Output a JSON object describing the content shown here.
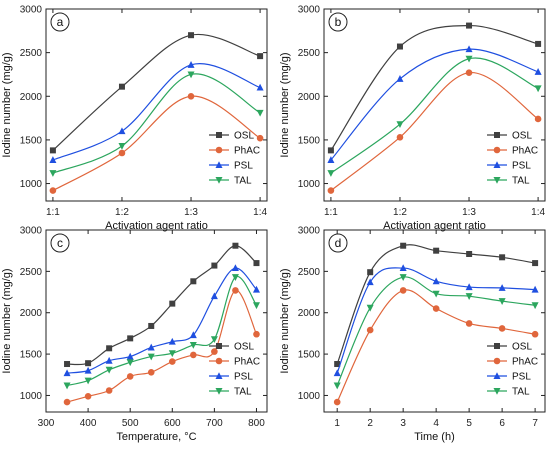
{
  "chart_data": [
    {
      "type": "line",
      "panel_label": "a",
      "xlabel": "Activation agent ratio",
      "ylabel": "Iodine number (mg/g)",
      "x_categorical": true,
      "x": [
        1,
        2,
        3,
        4
      ],
      "x_tick_labels": [
        "1:1",
        "1:2",
        "1:3",
        "1:4"
      ],
      "xlim": [
        0.9,
        4.1
      ],
      "ylim": [
        800,
        3000
      ],
      "y_ticks": [
        1000,
        1500,
        2000,
        2500,
        3000
      ],
      "legend_position": "lower-right",
      "series": [
        {
          "name": "OSL",
          "color": "#404040",
          "marker": "square",
          "values": [
            1380,
            2110,
            2700,
            2460
          ]
        },
        {
          "name": "PhAC",
          "color": "#e0663c",
          "marker": "circle",
          "values": [
            920,
            1350,
            2000,
            1520
          ]
        },
        {
          "name": "PSL",
          "color": "#1f4fe0",
          "marker": "triangle",
          "values": [
            1270,
            1600,
            2360,
            2100
          ]
        },
        {
          "name": "TAL",
          "color": "#2ca65e",
          "marker": "tri-down",
          "values": [
            1120,
            1430,
            2250,
            1810
          ]
        }
      ]
    },
    {
      "type": "line",
      "panel_label": "b",
      "xlabel": "Activation agent ratio",
      "ylabel": "Iodine number (mg/g)",
      "x_categorical": true,
      "x": [
        1,
        2,
        3,
        4
      ],
      "x_tick_labels": [
        "1:1",
        "1:2",
        "1:3",
        "1:4"
      ],
      "xlim": [
        0.9,
        4.1
      ],
      "ylim": [
        800,
        3000
      ],
      "y_ticks": [
        1000,
        1500,
        2000,
        2500,
        3000
      ],
      "legend_position": "lower-right",
      "series": [
        {
          "name": "OSL",
          "color": "#404040",
          "marker": "square",
          "values": [
            1380,
            2570,
            2810,
            2600
          ]
        },
        {
          "name": "PhAC",
          "color": "#e0663c",
          "marker": "circle",
          "values": [
            920,
            1530,
            2270,
            1740
          ]
        },
        {
          "name": "PSL",
          "color": "#1f4fe0",
          "marker": "triangle",
          "values": [
            1270,
            2200,
            2540,
            2280
          ]
        },
        {
          "name": "TAL",
          "color": "#2ca65e",
          "marker": "tri-down",
          "values": [
            1120,
            1680,
            2430,
            2090
          ]
        }
      ]
    },
    {
      "type": "line",
      "panel_label": "c",
      "xlabel": "Temperature, °C",
      "ylabel": "Iodine number (mg/g)",
      "x": [
        350,
        400,
        450,
        500,
        550,
        600,
        650,
        700,
        750,
        800
      ],
      "x_ticks": [
        300,
        400,
        500,
        600,
        700,
        800
      ],
      "xlim": [
        300,
        825
      ],
      "ylim": [
        800,
        3000
      ],
      "y_ticks": [
        1000,
        1500,
        2000,
        2500,
        3000
      ],
      "legend_position": "lower-right",
      "series": [
        {
          "name": "OSL",
          "color": "#404040",
          "marker": "square",
          "values": [
            1380,
            1390,
            1570,
            1690,
            1840,
            2110,
            2380,
            2570,
            2810,
            2600
          ]
        },
        {
          "name": "PhAC",
          "color": "#e0663c",
          "marker": "circle",
          "values": [
            920,
            990,
            1060,
            1230,
            1280,
            1410,
            1490,
            1530,
            2270,
            1740
          ]
        },
        {
          "name": "PSL",
          "color": "#1f4fe0",
          "marker": "triangle",
          "values": [
            1270,
            1300,
            1420,
            1470,
            1580,
            1650,
            1730,
            2200,
            2540,
            2280
          ]
        },
        {
          "name": "TAL",
          "color": "#2ca65e",
          "marker": "tri-down",
          "values": [
            1120,
            1180,
            1310,
            1400,
            1470,
            1510,
            1610,
            1680,
            2430,
            2090
          ]
        }
      ]
    },
    {
      "type": "line",
      "panel_label": "d",
      "xlabel": "Time (h)",
      "ylabel": "Iodine number (mg/g)",
      "x": [
        1,
        2,
        3,
        4,
        5,
        6,
        7
      ],
      "x_ticks": [
        1,
        2,
        3,
        4,
        5,
        6,
        7
      ],
      "xlim": [
        0.6,
        7.3
      ],
      "ylim": [
        800,
        3000
      ],
      "y_ticks": [
        1000,
        1500,
        2000,
        2500,
        3000
      ],
      "legend_position": "lower-right",
      "series": [
        {
          "name": "OSL",
          "color": "#404040",
          "marker": "square",
          "values": [
            1380,
            2490,
            2810,
            2750,
            2710,
            2670,
            2600
          ]
        },
        {
          "name": "PhAC",
          "color": "#e0663c",
          "marker": "circle",
          "values": [
            920,
            1790,
            2270,
            2050,
            1870,
            1810,
            1740
          ]
        },
        {
          "name": "PSL",
          "color": "#1f4fe0",
          "marker": "triangle",
          "values": [
            1270,
            2370,
            2540,
            2380,
            2310,
            2300,
            2280
          ]
        },
        {
          "name": "TAL",
          "color": "#2ca65e",
          "marker": "tri-down",
          "values": [
            1120,
            2060,
            2430,
            2230,
            2200,
            2140,
            2090
          ]
        }
      ]
    }
  ]
}
